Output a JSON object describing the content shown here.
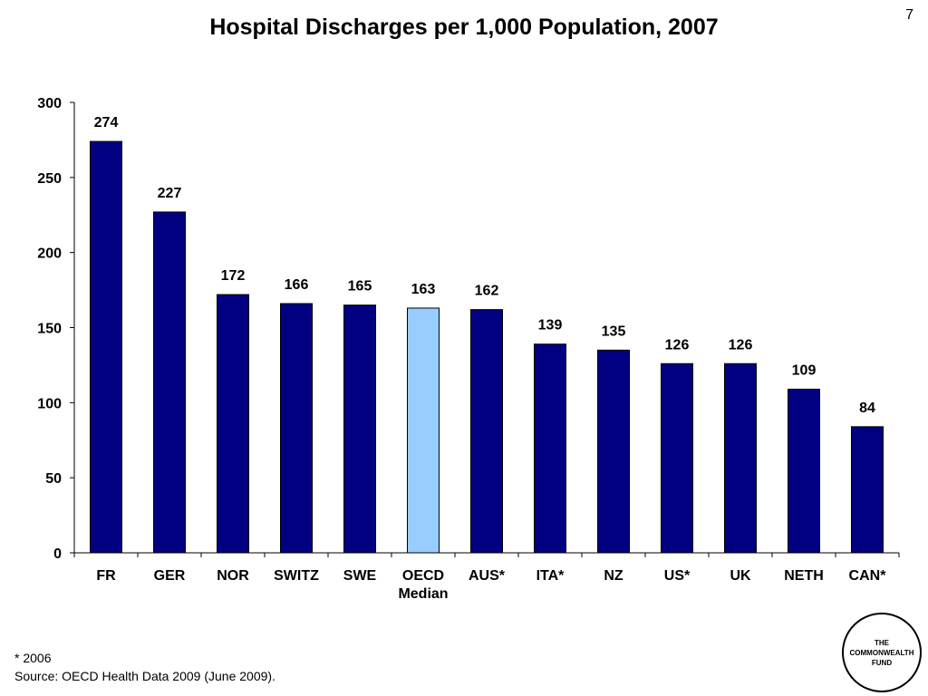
{
  "page": {
    "title": "Hospital Discharges per 1,000 Population, 2007",
    "page_number": "7"
  },
  "footnote": {
    "asterisk": "* 2006",
    "source": "Source: OECD Health Data 2009 (June 2009)."
  },
  "logo": {
    "line1": "THE",
    "line2": "COMMONWEALTH",
    "line3": "FUND"
  },
  "colors": {
    "bar": "#000080",
    "highlight": "#99CCFF",
    "outline": "#000000"
  },
  "chart_data": {
    "type": "bar",
    "title": "Hospital Discharges per 1,000 Population, 2007",
    "xlabel": "",
    "ylabel": "",
    "categories": [
      "FR",
      "GER",
      "NOR",
      "SWITZ",
      "SWE",
      "OECD\nMedian",
      "AUS*",
      "ITA*",
      "NZ",
      "US*",
      "UK",
      "NETH",
      "CAN*"
    ],
    "values": [
      274,
      227,
      172,
      166,
      165,
      163,
      162,
      139,
      135,
      126,
      126,
      109,
      84
    ],
    "highlight_category": "OECD\nMedian",
    "ylim": [
      0,
      300
    ],
    "yticks": [
      0,
      50,
      100,
      150,
      200,
      250,
      300
    ],
    "data_labels": true,
    "grid": false,
    "legend": "none"
  }
}
